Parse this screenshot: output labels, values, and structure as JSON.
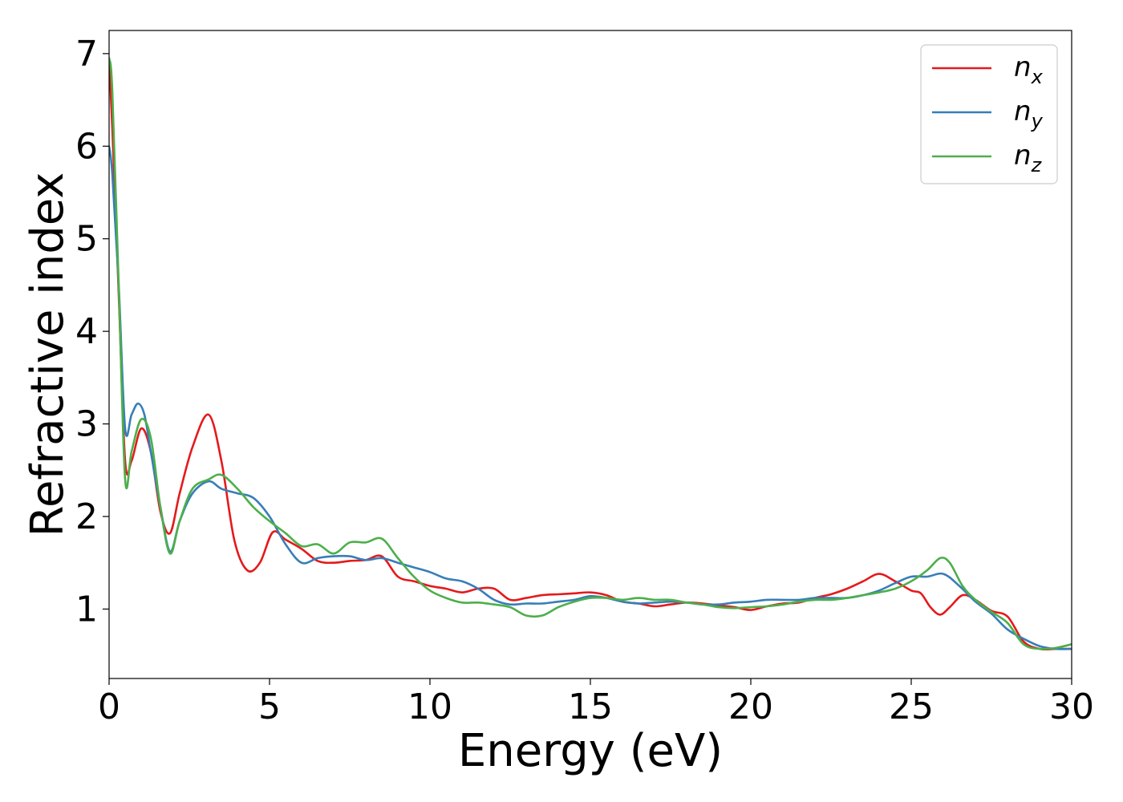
{
  "chart_data": {
    "type": "line",
    "xlabel": "Energy (eV)",
    "ylabel": "Refractive index",
    "xlim": [
      0,
      30
    ],
    "ylim": [
      0.25,
      7.25
    ],
    "xticks": [
      0,
      5,
      10,
      15,
      20,
      25,
      30
    ],
    "yticks": [
      1,
      2,
      3,
      4,
      5,
      6,
      7
    ],
    "grid": false,
    "legend_position": "top-right",
    "series": [
      {
        "name": "n",
        "subscript": "x",
        "color": "#e41a1c",
        "x": [
          0,
          0.1,
          0.3,
          0.5,
          0.7,
          1.0,
          1.3,
          1.6,
          1.9,
          2.2,
          2.6,
          3.1,
          3.5,
          3.9,
          4.3,
          4.7,
          5.1,
          5.5,
          6.0,
          6.5,
          7.0,
          7.5,
          8.0,
          8.5,
          9.0,
          9.5,
          10.0,
          10.5,
          11.0,
          11.5,
          12.0,
          12.5,
          13.0,
          13.5,
          14.0,
          14.5,
          15.0,
          15.5,
          16.0,
          16.5,
          17.0,
          17.5,
          18.0,
          18.5,
          19.0,
          19.5,
          20.0,
          20.5,
          21.0,
          21.5,
          22.0,
          22.5,
          23.0,
          23.5,
          24.0,
          24.5,
          25.0,
          25.3,
          25.6,
          25.9,
          26.2,
          26.6,
          27.0,
          27.5,
          28.0,
          28.5,
          29.0,
          29.5,
          30.0
        ],
        "y": [
          6.95,
          6.2,
          4.4,
          2.6,
          2.6,
          2.95,
          2.7,
          2.05,
          1.82,
          2.25,
          2.75,
          3.1,
          2.6,
          1.75,
          1.42,
          1.5,
          1.83,
          1.75,
          1.65,
          1.52,
          1.5,
          1.52,
          1.53,
          1.57,
          1.35,
          1.3,
          1.25,
          1.22,
          1.18,
          1.22,
          1.22,
          1.1,
          1.12,
          1.15,
          1.16,
          1.17,
          1.18,
          1.15,
          1.08,
          1.06,
          1.03,
          1.05,
          1.07,
          1.06,
          1.04,
          1.02,
          0.99,
          1.03,
          1.06,
          1.07,
          1.12,
          1.16,
          1.22,
          1.3,
          1.38,
          1.3,
          1.2,
          1.17,
          1.02,
          0.94,
          1.02,
          1.15,
          1.1,
          0.98,
          0.92,
          0.65,
          0.57,
          0.57,
          0.57
        ]
      },
      {
        "name": "n",
        "subscript": "y",
        "color": "#377eb8",
        "x": [
          0,
          0.1,
          0.3,
          0.5,
          0.7,
          0.9,
          1.1,
          1.3,
          1.6,
          1.9,
          2.2,
          2.6,
          3.1,
          3.5,
          4.0,
          4.5,
          5.0,
          5.5,
          6.0,
          6.5,
          7.0,
          7.5,
          8.0,
          8.5,
          9.0,
          9.5,
          10.0,
          10.5,
          11.0,
          11.5,
          12.0,
          12.5,
          13.0,
          13.5,
          14.0,
          14.5,
          15.0,
          15.5,
          16.0,
          16.5,
          17.0,
          17.5,
          18.0,
          18.5,
          19.0,
          19.5,
          20.0,
          20.5,
          21.0,
          21.5,
          22.0,
          22.5,
          23.0,
          23.5,
          24.0,
          24.5,
          25.0,
          25.5,
          26.0,
          26.5,
          27.0,
          27.5,
          28.0,
          28.5,
          29.0,
          29.5,
          30.0
        ],
        "y": [
          6.0,
          5.7,
          4.5,
          2.95,
          3.1,
          3.22,
          3.1,
          2.7,
          2.1,
          1.62,
          1.95,
          2.25,
          2.38,
          2.3,
          2.25,
          2.2,
          2.0,
          1.7,
          1.5,
          1.55,
          1.57,
          1.57,
          1.53,
          1.55,
          1.5,
          1.45,
          1.4,
          1.33,
          1.3,
          1.22,
          1.1,
          1.05,
          1.06,
          1.06,
          1.08,
          1.1,
          1.14,
          1.12,
          1.08,
          1.06,
          1.07,
          1.08,
          1.07,
          1.05,
          1.05,
          1.07,
          1.08,
          1.1,
          1.1,
          1.1,
          1.12,
          1.12,
          1.12,
          1.15,
          1.2,
          1.28,
          1.35,
          1.35,
          1.38,
          1.25,
          1.08,
          0.95,
          0.78,
          0.68,
          0.6,
          0.57,
          0.57
        ]
      },
      {
        "name": "n",
        "subscript": "z",
        "color": "#4daf4a",
        "x": [
          0,
          0.1,
          0.3,
          0.5,
          0.7,
          1.0,
          1.3,
          1.6,
          1.9,
          2.2,
          2.6,
          3.1,
          3.5,
          4.0,
          4.5,
          5.0,
          5.5,
          6.0,
          6.5,
          7.0,
          7.5,
          8.0,
          8.5,
          9.0,
          9.5,
          10.0,
          10.5,
          11.0,
          11.5,
          12.0,
          12.5,
          13.0,
          13.5,
          14.0,
          14.5,
          15.0,
          15.5,
          16.0,
          16.5,
          17.0,
          17.5,
          18.0,
          18.5,
          19.0,
          19.5,
          20.0,
          20.5,
          21.0,
          21.5,
          22.0,
          22.5,
          23.0,
          23.5,
          24.0,
          24.5,
          25.0,
          25.5,
          25.9,
          26.2,
          26.6,
          27.0,
          27.5,
          28.0,
          28.5,
          29.0,
          29.5,
          30.0
        ],
        "y": [
          6.95,
          6.6,
          4.5,
          2.4,
          2.7,
          3.05,
          2.85,
          2.1,
          1.6,
          1.95,
          2.3,
          2.4,
          2.45,
          2.3,
          2.1,
          1.95,
          1.82,
          1.68,
          1.7,
          1.6,
          1.72,
          1.72,
          1.76,
          1.55,
          1.35,
          1.2,
          1.12,
          1.07,
          1.07,
          1.05,
          1.02,
          0.93,
          0.93,
          1.02,
          1.08,
          1.12,
          1.12,
          1.1,
          1.12,
          1.1,
          1.1,
          1.07,
          1.05,
          1.02,
          1.01,
          1.02,
          1.03,
          1.05,
          1.08,
          1.1,
          1.1,
          1.12,
          1.15,
          1.18,
          1.22,
          1.3,
          1.42,
          1.55,
          1.5,
          1.25,
          1.1,
          0.97,
          0.85,
          0.62,
          0.57,
          0.58,
          0.62
        ]
      }
    ]
  }
}
